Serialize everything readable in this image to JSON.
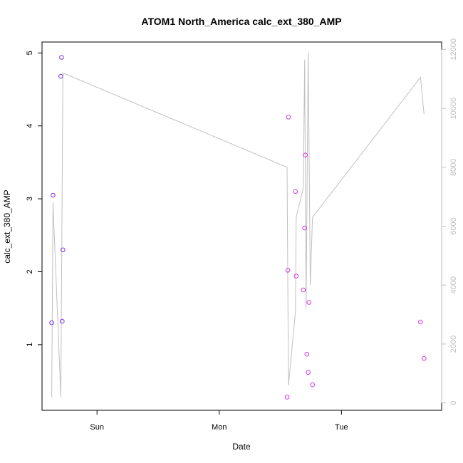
{
  "chart_data": {
    "type": "scatter",
    "title": "ATOM1 North_America calc_ext_380_AMP",
    "xlabel": "Date",
    "ylabel": "calc_ext_380_AMP",
    "x_ticks": [
      "Sun",
      "Mon",
      "Tue"
    ],
    "x_tick_positions": [
      1.0,
      2.0,
      3.0
    ],
    "xlim": [
      0.55,
      3.82
    ],
    "ylim": [
      0.1,
      5.15
    ],
    "y_ticks": [
      1,
      2,
      3,
      4,
      5
    ],
    "y2lim": [
      -250,
      12250
    ],
    "y2_ticks": [
      0,
      2000,
      4000,
      6000,
      8000,
      10000,
      12000
    ],
    "grid": false,
    "series": [
      {
        "values": [
          {
            "x": 0.629,
            "y": 1.3,
            "color": "#7a33ee"
          },
          {
            "x": 0.64,
            "y": 3.05,
            "color": "#7a33ee"
          },
          {
            "x": 0.704,
            "y": 4.68,
            "color": "#7a33ee"
          },
          {
            "x": 0.71,
            "y": 4.94,
            "color": "#7a33ee"
          },
          {
            "x": 0.715,
            "y": 1.32,
            "color": "#7a33ee"
          },
          {
            "x": 0.721,
            "y": 2.3,
            "color": "#7a33ee"
          },
          {
            "x": 2.555,
            "y": 0.28,
            "color": "#d633e6"
          },
          {
            "x": 2.561,
            "y": 2.02,
            "color": "#d633e6"
          },
          {
            "x": 2.567,
            "y": 4.12,
            "color": "#d633e6"
          },
          {
            "x": 2.624,
            "y": 3.1,
            "color": "#d633e6"
          },
          {
            "x": 2.63,
            "y": 1.94,
            "color": "#d633e6"
          },
          {
            "x": 2.688,
            "y": 1.75,
            "color": "#d633e6"
          },
          {
            "x": 2.699,
            "y": 2.6,
            "color": "#d633e6"
          },
          {
            "x": 2.705,
            "y": 3.6,
            "color": "#d633e6"
          },
          {
            "x": 2.717,
            "y": 0.87,
            "color": "#d633e6"
          },
          {
            "x": 2.728,
            "y": 0.62,
            "color": "#d633e6"
          },
          {
            "x": 2.734,
            "y": 1.58,
            "color": "#d633e6"
          },
          {
            "x": 2.763,
            "y": 0.45,
            "color": "#d633e6"
          },
          {
            "x": 3.647,
            "y": 1.31,
            "color": "#d633e6"
          },
          {
            "x": 3.676,
            "y": 0.81,
            "color": "#d633e6"
          }
        ]
      },
      {
        "axis": "right",
        "color": "#c0c0c0",
        "values": [
          {
            "x": 0.629,
            "y": 200
          },
          {
            "x": 0.64,
            "y": 6800
          },
          {
            "x": 0.704,
            "y": 200
          },
          {
            "x": 0.721,
            "y": 11200
          },
          {
            "x": 2.555,
            "y": 8000
          },
          {
            "x": 2.567,
            "y": 600
          },
          {
            "x": 2.624,
            "y": 3100
          },
          {
            "x": 2.63,
            "y": 6300
          },
          {
            "x": 2.688,
            "y": 7300
          },
          {
            "x": 2.699,
            "y": 11650
          },
          {
            "x": 2.711,
            "y": 3200
          },
          {
            "x": 2.728,
            "y": 11900
          },
          {
            "x": 2.745,
            "y": 4000
          },
          {
            "x": 2.763,
            "y": 6300
          },
          {
            "x": 3.647,
            "y": 11050
          },
          {
            "x": 3.676,
            "y": 9800
          }
        ]
      }
    ]
  }
}
